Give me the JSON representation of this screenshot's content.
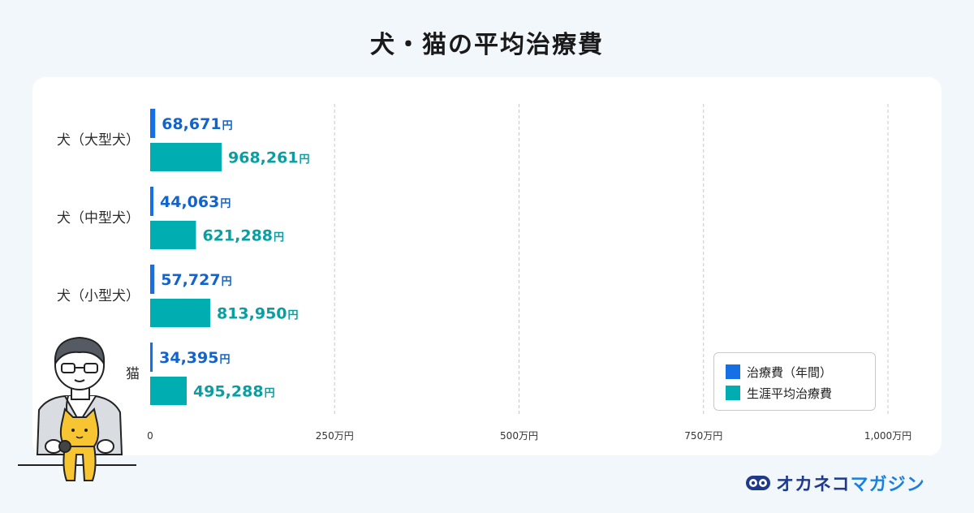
{
  "title": "犬・猫の平均治療費",
  "colors": {
    "annual": "#1570e6",
    "lifetime": "#00adb0",
    "annual_text": "#1263cc",
    "lifetime_text": "#0a9ea1"
  },
  "chart_data": {
    "type": "bar",
    "orientation": "horizontal",
    "title": "犬・猫の平均治療費",
    "categories": [
      "犬（大型犬）",
      "犬（中型犬）",
      "犬（小型犬）",
      "猫"
    ],
    "series": [
      {
        "name": "治療費（年間）",
        "values": [
          68671,
          44063,
          57727,
          34395
        ],
        "labels": [
          "68,671",
          "44,063",
          "57,727",
          "34,395"
        ]
      },
      {
        "name": "生涯平均治療費",
        "values": [
          968261,
          621288,
          813950,
          495288
        ],
        "labels": [
          "968,261",
          "621,288",
          "813,950",
          "495,288"
        ]
      }
    ],
    "value_unit": "円",
    "xlim": [
      0,
      10000000
    ],
    "xticks": [
      0,
      2500000,
      5000000,
      7500000,
      10000000
    ],
    "xtick_labels": [
      "0",
      "250万円",
      "500万円",
      "750万円",
      "1,000万円"
    ],
    "grid": true,
    "legend_position": "bottom-right"
  },
  "legend": {
    "items": [
      "治療費（年間）",
      "生涯平均治療費"
    ]
  },
  "logo": {
    "text_main": "オカネコ",
    "text_accent": "マガジン"
  }
}
